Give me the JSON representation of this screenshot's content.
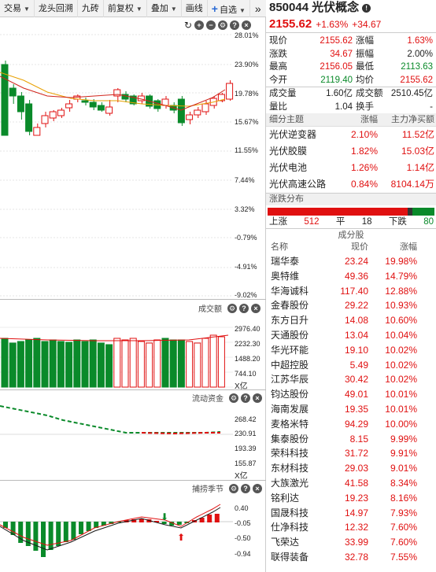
{
  "toolbar": {
    "items": [
      "交易",
      "龙头回溯",
      "九砖",
      "前复权",
      "叠加",
      "画线"
    ],
    "add_label": "自选",
    "more": "»"
  },
  "main_panel": {
    "y_axis": [
      "28.01%",
      "23.90%",
      "19.78%",
      "15.67%",
      "11.55%",
      "7.44%",
      "3.32%",
      "-0.79%",
      "-4.91%",
      "-9.02%"
    ]
  },
  "volume_panel": {
    "title": "成交额",
    "y_axis": [
      "2976.40",
      "2232.30",
      "1488.20",
      "744.10"
    ],
    "unit": "X亿"
  },
  "flow_panel": {
    "title": "流动资金",
    "y_axis": [
      "268.42",
      "230.91",
      "193.39",
      "155.87"
    ],
    "unit": "X亿"
  },
  "osc_panel": {
    "title": "捕捞季节",
    "y_axis": [
      "0.40",
      "-0.05",
      "-0.50",
      "-0.94"
    ]
  },
  "quote": {
    "code": "850044",
    "name": "光伏概念",
    "price": "2155.62",
    "change_pct": "+1.63%",
    "change_abs": "+34.67",
    "rows": [
      [
        "现价",
        "2155.62",
        "涨幅",
        "1.63%"
      ],
      [
        "涨跌",
        "34.67",
        "振幅",
        "2.00%"
      ],
      [
        "最高",
        "2156.05",
        "最低",
        "2113.63"
      ],
      [
        "今开",
        "2119.40",
        "均价",
        "2155.62"
      ],
      [
        "成交量",
        "1.60亿",
        "成交额",
        "2510.45亿"
      ],
      [
        "量比",
        "1.04",
        "换手",
        "-"
      ]
    ]
  },
  "subthemes": {
    "headers": [
      "细分主题",
      "涨幅",
      "主力净买额"
    ],
    "rows": [
      [
        "光伏逆变器",
        "2.10%",
        "11.52亿"
      ],
      [
        "光伏胶膜",
        "1.82%",
        "15.03亿"
      ],
      [
        "光伏电池",
        "1.26%",
        "1.14亿"
      ],
      [
        "光伏高速公路",
        "0.84%",
        "8104.14万"
      ]
    ]
  },
  "distribution": {
    "title": "涨跌分布",
    "up_label": "上涨",
    "up": "512",
    "flat_label": "平",
    "flat": "18",
    "down_label": "下跌",
    "down": "80",
    "up_frac": 0.839,
    "flat_frac": 0.03,
    "down_frac": 0.131
  },
  "constituents": {
    "title": "成分股",
    "headers": [
      "名称",
      "现价",
      "涨幅"
    ],
    "rows": [
      [
        "瑞华泰",
        "23.24",
        "19.98%"
      ],
      [
        "奥特维",
        "49.36",
        "14.79%"
      ],
      [
        "华海诚科",
        "117.40",
        "12.88%"
      ],
      [
        "金春股份",
        "29.22",
        "10.93%"
      ],
      [
        "东方日升",
        "14.08",
        "10.60%"
      ],
      [
        "天通股份",
        "13.04",
        "10.04%"
      ],
      [
        "华光环能",
        "19.10",
        "10.02%"
      ],
      [
        "中超控股",
        "5.49",
        "10.02%"
      ],
      [
        "江苏华辰",
        "30.42",
        "10.02%"
      ],
      [
        "钧达股份",
        "49.01",
        "10.01%"
      ],
      [
        "海南发展",
        "19.35",
        "10.01%"
      ],
      [
        "麦格米特",
        "94.29",
        "10.00%"
      ],
      [
        "集泰股份",
        "8.15",
        "9.99%"
      ],
      [
        "荣科科技",
        "31.72",
        "9.91%"
      ],
      [
        "东材科技",
        "29.03",
        "9.01%"
      ],
      [
        "大族激光",
        "41.58",
        "8.34%"
      ],
      [
        "铭利达",
        "19.23",
        "8.16%"
      ],
      [
        "国晟科技",
        "14.97",
        "7.93%"
      ],
      [
        "仕净科技",
        "12.32",
        "7.60%"
      ],
      [
        "飞荣达",
        "33.99",
        "7.60%"
      ],
      [
        "联得装备",
        "32.78",
        "7.55%"
      ]
    ]
  },
  "colors": {
    "up": "#e01010",
    "down": "#0a8a2a",
    "accent": "#2a6ad4"
  }
}
